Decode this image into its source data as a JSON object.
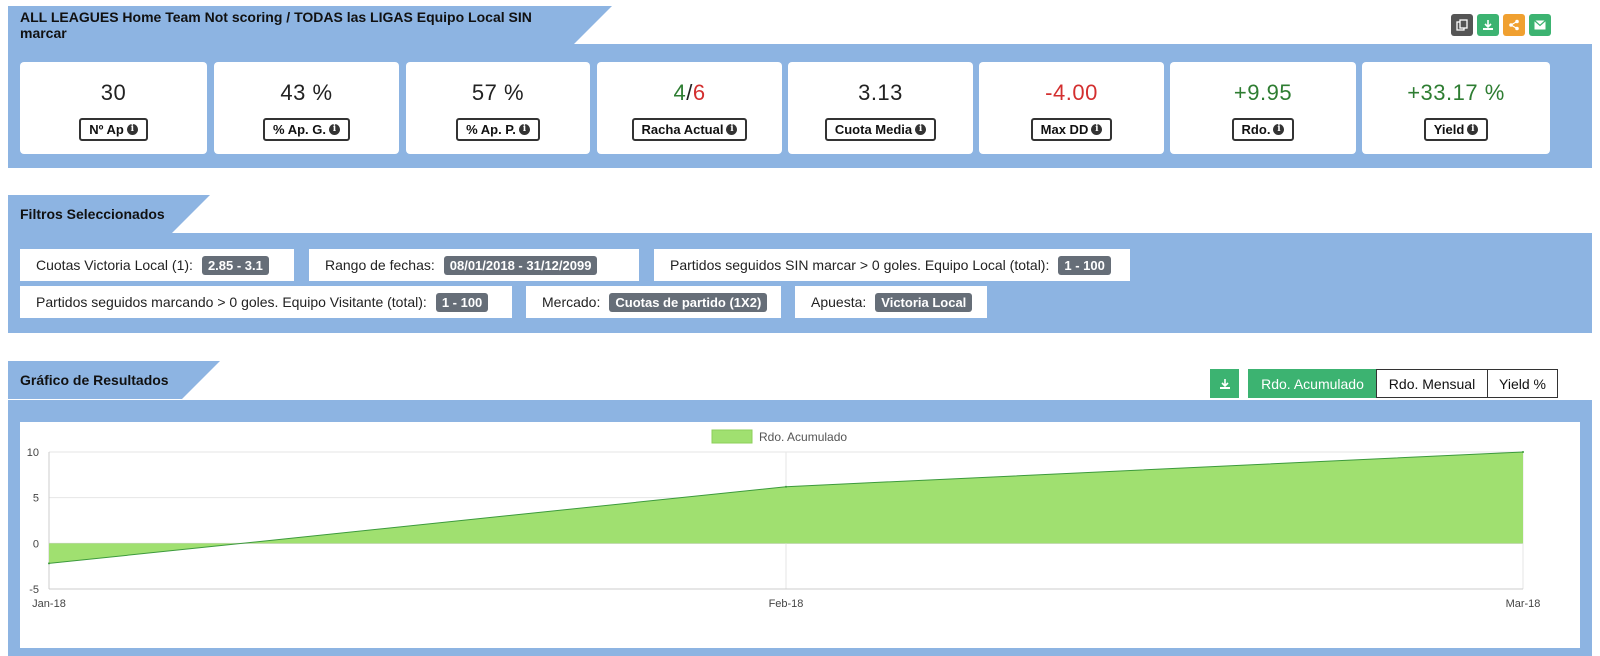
{
  "title": "ALL LEAGUES Home Team Not scoring / TODAS las LIGAS Equipo Local SIN marcar",
  "toolbar": {
    "copy_icon": "copy-icon",
    "download_icon": "download-icon",
    "share_icon": "share-icon",
    "email_icon": "envelope-icon"
  },
  "stats": [
    {
      "value": "30",
      "label": "Nº Ap"
    },
    {
      "value": "43 %",
      "label": "% Ap. G."
    },
    {
      "value": "57 %",
      "label": "% Ap. P."
    },
    {
      "value_win": "4",
      "value_sep": "/",
      "value_loss": "6",
      "label": "Racha Actual"
    },
    {
      "value": "3.13",
      "label": "Cuota Media"
    },
    {
      "value": "-4.00",
      "label": "Max DD"
    },
    {
      "value": "+9.95",
      "label": "Rdo."
    },
    {
      "value": "+33.17 %",
      "label": "Yield"
    }
  ],
  "filters": {
    "header": "Filtros Seleccionados",
    "items": [
      {
        "label": "Cuotas Victoria Local (1):",
        "value": "2.85 - 3.1"
      },
      {
        "label": "Rango de fechas:",
        "value": "08/01/2018 - 31/12/2099"
      },
      {
        "label": "Partidos seguidos SIN marcar > 0 goles. Equipo Local (total):",
        "value": "1 - 100"
      },
      {
        "label": "Partidos seguidos marcando > 0 goles. Equipo Visitante (total):",
        "value": "1 - 100"
      },
      {
        "label": "Mercado:",
        "value": "Cuotas de partido (1X2)"
      },
      {
        "label": "Apuesta:",
        "value": "Victoria Local"
      }
    ]
  },
  "results": {
    "header": "Gráfico de Resultados",
    "buttons": [
      "Rdo. Acumulado",
      "Rdo. Mensual",
      "Yield %"
    ],
    "active": "Rdo. Acumulado"
  },
  "colors": {
    "panel": "#8db4e2",
    "positive": "#2e7d32",
    "negative": "#d32f2f",
    "active_button": "#3cb371",
    "area_fill": "#a0e070",
    "area_line": "#3c9a3c"
  },
  "chart_data": {
    "type": "area",
    "x": [
      "Jan-18",
      "Feb-18",
      "Mar-18"
    ],
    "series": [
      {
        "name": "Rdo. Acumulado",
        "values": [
          -2.2,
          6.2,
          10.0
        ]
      }
    ],
    "ylim": [
      -5,
      10
    ],
    "yticks": [
      10,
      5,
      0,
      -5
    ],
    "grid": true,
    "legend": "top-center"
  }
}
